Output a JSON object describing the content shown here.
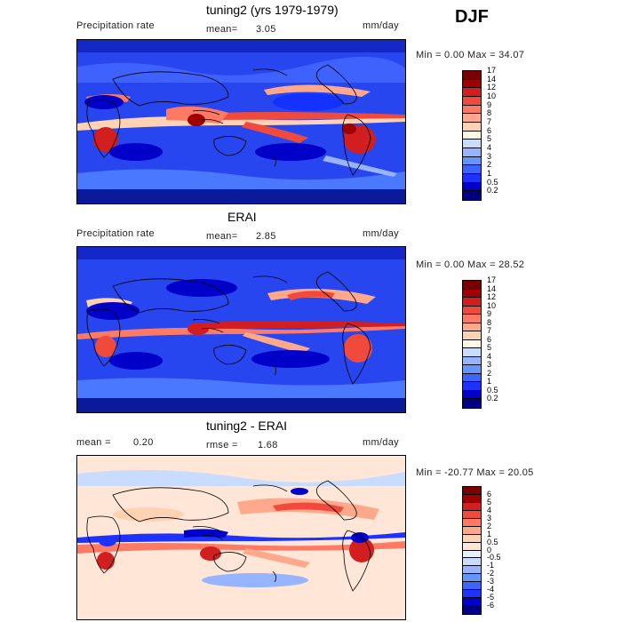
{
  "season": "DJF",
  "panels": [
    {
      "title": "tuning2 (yrs 1979-1979)",
      "left_label": "Precipitation rate",
      "mean_label": "mean=",
      "mean_value": "3.05",
      "units": "mm/day",
      "minmax": "Min =   0.00 Max =  34.07",
      "colors": [
        "#000080",
        "#0000c8",
        "#1e32ff",
        "#3c64ff",
        "#6496ff",
        "#96b4ff",
        "#c8dcff",
        "#fff8e6",
        "#ffd2b4",
        "#ffa88c",
        "#ff7a64",
        "#f04a3c",
        "#d21e1e",
        "#a00000",
        "#780000"
      ],
      "ticks": [
        "0.2",
        "0.5",
        "1",
        "2",
        "3",
        "4",
        "5",
        "6",
        "7",
        "8",
        "9",
        "10",
        "12",
        "14",
        "17"
      ]
    },
    {
      "title": "ERAI",
      "left_label": "Precipitation rate",
      "mean_label": "mean=",
      "mean_value": "2.85",
      "units": "mm/day",
      "minmax": "Min =   0.00 Max =  28.52",
      "colors": [
        "#000080",
        "#0000c8",
        "#1e32ff",
        "#3c64ff",
        "#6496ff",
        "#96b4ff",
        "#c8dcff",
        "#fff8e6",
        "#ffd2b4",
        "#ffa88c",
        "#ff7a64",
        "#f04a3c",
        "#d21e1e",
        "#a00000",
        "#780000"
      ],
      "ticks": [
        "0.2",
        "0.5",
        "1",
        "2",
        "3",
        "4",
        "5",
        "6",
        "7",
        "8",
        "9",
        "10",
        "12",
        "14",
        "17"
      ]
    },
    {
      "title": "tuning2 - ERAI",
      "left_label": "mean =",
      "mean_label": "rmse =",
      "left_value": "0.20",
      "mean_value": "1.68",
      "units": "mm/day",
      "minmax": "Min = -20.77 Max =  20.05",
      "colors": [
        "#000080",
        "#0000c8",
        "#1e32ff",
        "#3c64ff",
        "#6496ff",
        "#96b4ff",
        "#c8dcff",
        "#e6f0ff",
        "#ffe6d7",
        "#ffd2b4",
        "#ffa88c",
        "#ff7a64",
        "#f04a3c",
        "#d21e1e",
        "#a00000",
        "#780000"
      ],
      "ticks": [
        "-6",
        "-5",
        "-4",
        "-3",
        "-2",
        "-1",
        "-0.5",
        "0",
        "0.5",
        "1",
        "2",
        "3",
        "4",
        "5",
        "6"
      ]
    }
  ]
}
